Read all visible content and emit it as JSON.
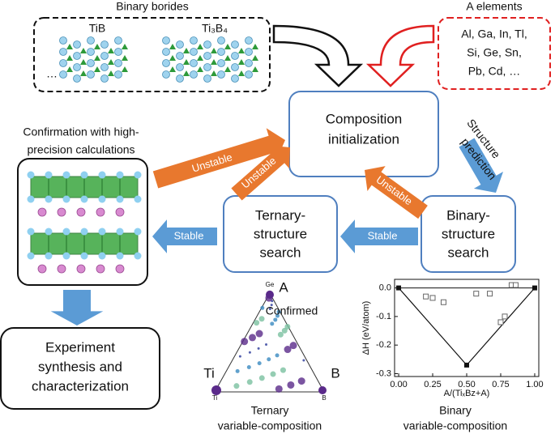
{
  "binary_borides": {
    "title": "Binary borides",
    "labels": [
      "TiB",
      "Ti₃B₄"
    ],
    "ellipsis": "…"
  },
  "a_elements": {
    "title": "A elements",
    "lines": [
      "Al, Ga, In, Tl,",
      "Si, Ge, Sn,",
      "Pb, Cd, …"
    ]
  },
  "nodes": {
    "composition": [
      "Composition",
      "initialization"
    ],
    "binary_search": [
      "Binary-",
      "structure",
      "search"
    ],
    "ternary_search": [
      "Ternary-",
      "structure",
      "search"
    ],
    "confirmation": [
      "Confirmation with high-",
      "precision calculations"
    ],
    "experiment": [
      "Experiment",
      "synthesis and",
      "characterization"
    ]
  },
  "edges": {
    "structure_prediction": [
      "Structure",
      "prediction"
    ],
    "unstable": [
      "Unstable",
      "Unstable",
      "Unstable"
    ],
    "stable": [
      "Stable",
      "Stable"
    ],
    "confirmed": "Confirmed"
  },
  "ternary_plot": {
    "vertices": [
      "A",
      "Ti",
      "B"
    ],
    "small_vertices": [
      "Ge",
      "Ti",
      "B"
    ],
    "caption": [
      "Ternary",
      "variable-composition"
    ]
  },
  "binary_plot": {
    "ylabel": "ΔH (eV/atom)",
    "xlabel": "A/(TiₓBz+A)",
    "caption": [
      "Binary",
      "variable-composition"
    ],
    "xlim": [
      -0.03,
      1.03
    ],
    "ylim": [
      -0.31,
      0.03
    ],
    "xticks": [
      {
        "value": 0,
        "label": "0.00"
      },
      0.25,
      {
        "value": 0.5,
        "label": "0.50"
      },
      0.75,
      {
        "value": 1,
        "label": "1.00"
      }
    ],
    "yticks": [
      {
        "value": 0,
        "label": "0.0"
      },
      -0.1,
      -0.2,
      -0.3
    ],
    "hull": {
      "x": [
        0,
        0.5,
        1
      ],
      "y": [
        0,
        -0.27,
        0
      ]
    },
    "others": {
      "x": [
        0.2,
        0.25,
        0.33,
        0.57,
        0.67,
        0.75,
        0.78,
        0.83,
        0.86
      ],
      "y": [
        -0.03,
        -0.035,
        -0.05,
        -0.02,
        -0.02,
        -0.12,
        -0.1,
        0.01,
        0.01
      ]
    }
  }
}
